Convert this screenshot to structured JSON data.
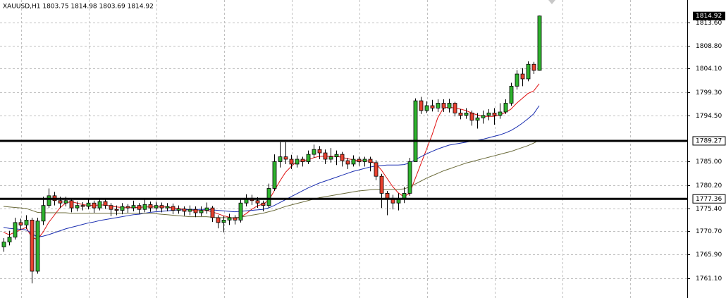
{
  "chart_data": {
    "type": "candlestick",
    "title": "XAUUSD,H1  1803.75 1814.98 1803.69 1814.92",
    "open": [
      1767.5,
      1768.5,
      1769.5,
      1772.5,
      1772.0,
      1773.0,
      1762.5,
      1772.8,
      1776.0,
      1778.0,
      1777.0,
      1776.5,
      1777.0,
      1775.5,
      1776.0,
      1775.8,
      1776.5,
      1775.5,
      1776.8,
      1776.0,
      1775.2,
      1775.0,
      1775.8,
      1775.5,
      1776.0,
      1775.2,
      1776.2,
      1775.5,
      1776.0,
      1775.5,
      1775.8,
      1775.0,
      1775.3,
      1774.8,
      1775.2,
      1774.5,
      1775.0,
      1775.5,
      1773.5,
      1772.5,
      1773.0,
      1773.5,
      1773.0,
      1776.5,
      1777.5,
      1777.0,
      1776.5,
      1776.0,
      1779.5,
      1785.0,
      1786.0,
      1785.5,
      1784.5,
      1785.5,
      1785.0,
      1786.5,
      1787.5,
      1786.8,
      1785.5,
      1786.0,
      1786.5,
      1785.2,
      1784.5,
      1785.5,
      1785.0,
      1785.5,
      1784.8,
      1782.0,
      1778.5,
      1777.5,
      1776.5,
      1777.5,
      1778.5,
      1785.0,
      1797.5,
      1795.5,
      1796.5,
      1796.0,
      1797.0,
      1796.0,
      1797.0,
      1795.0,
      1794.5,
      1795.0,
      1793.5,
      1794.0,
      1794.5,
      1795.0,
      1794.5,
      1795.2,
      1797.0,
      1800.5,
      1803.0,
      1802.0,
      1805.0,
      1803.75
    ],
    "high": [
      1769.3,
      1770.8,
      1773.5,
      1773.3,
      1774.0,
      1773.5,
      1773.5,
      1777.8,
      1779.5,
      1778.8,
      1777.8,
      1777.8,
      1777.3,
      1776.8,
      1776.7,
      1777.5,
      1777.0,
      1777.5,
      1777.3,
      1776.5,
      1776.0,
      1776.5,
      1776.3,
      1777.0,
      1776.5,
      1777.2,
      1776.8,
      1776.8,
      1776.6,
      1776.5,
      1776.4,
      1776.0,
      1775.8,
      1776.0,
      1775.8,
      1775.8,
      1776.6,
      1775.9,
      1774.0,
      1773.8,
      1774.3,
      1774.0,
      1777.2,
      1778.3,
      1778.2,
      1777.7,
      1777.0,
      1780.5,
      1786.5,
      1789.0,
      1789.0,
      1786.4,
      1786.3,
      1786.0,
      1787.3,
      1788.5,
      1788.2,
      1787.5,
      1787.8,
      1787.3,
      1787.0,
      1785.8,
      1786.3,
      1786.0,
      1786.0,
      1786.0,
      1785.3,
      1782.5,
      1779.0,
      1778.2,
      1778.5,
      1779.8,
      1785.8,
      1798.0,
      1798.3,
      1797.4,
      1797.7,
      1797.8,
      1797.8,
      1797.9,
      1797.3,
      1795.8,
      1796.0,
      1795.5,
      1795.0,
      1795.5,
      1795.8,
      1796.0,
      1797.0,
      1797.8,
      1801.2,
      1803.8,
      1804.2,
      1805.6,
      1805.5,
      1814.98
    ],
    "low": [
      1766.5,
      1767.8,
      1769.0,
      1771.0,
      1771.2,
      1760.0,
      1762.0,
      1772.0,
      1775.5,
      1776.0,
      1775.5,
      1775.8,
      1774.6,
      1774.8,
      1775.0,
      1775.2,
      1774.5,
      1775.0,
      1775.3,
      1773.8,
      1774.0,
      1774.2,
      1774.5,
      1774.8,
      1774.3,
      1774.6,
      1774.7,
      1774.9,
      1774.6,
      1774.8,
      1774.2,
      1774.3,
      1773.9,
      1774.0,
      1773.6,
      1773.8,
      1774.3,
      1772.6,
      1771.3,
      1770.5,
      1772.0,
      1772.1,
      1772.5,
      1775.8,
      1776.1,
      1775.5,
      1774.8,
      1775.5,
      1779.0,
      1783.8,
      1784.5,
      1783.5,
      1783.8,
      1784.0,
      1784.5,
      1785.8,
      1785.5,
      1784.5,
      1784.8,
      1784.3,
      1784.0,
      1783.5,
      1784.0,
      1784.2,
      1784.0,
      1783.0,
      1781.2,
      1775.5,
      1774.0,
      1775.2,
      1775.0,
      1776.5,
      1778.0,
      1785.0,
      1794.8,
      1795.0,
      1795.3,
      1795.2,
      1795.2,
      1795.1,
      1794.3,
      1793.7,
      1793.8,
      1792.4,
      1791.8,
      1792.8,
      1793.5,
      1792.6,
      1793.8,
      1794.8,
      1796.5,
      1799.8,
      1800.5,
      1801.5,
      1803.0,
      1803.69
    ],
    "close": [
      1768.5,
      1769.5,
      1772.5,
      1772.0,
      1773.0,
      1762.5,
      1772.8,
      1776.0,
      1778.0,
      1777.0,
      1776.5,
      1777.0,
      1775.5,
      1776.0,
      1775.8,
      1776.5,
      1775.5,
      1776.8,
      1776.0,
      1775.2,
      1775.0,
      1775.8,
      1775.5,
      1776.0,
      1775.2,
      1776.2,
      1775.5,
      1776.0,
      1775.5,
      1775.8,
      1775.0,
      1775.3,
      1774.8,
      1775.2,
      1774.5,
      1775.0,
      1775.5,
      1773.5,
      1772.5,
      1773.0,
      1773.5,
      1773.0,
      1776.5,
      1777.5,
      1777.0,
      1776.5,
      1776.0,
      1779.5,
      1785.0,
      1786.0,
      1785.5,
      1784.5,
      1785.5,
      1785.0,
      1786.5,
      1787.5,
      1786.8,
      1785.5,
      1786.0,
      1786.5,
      1785.2,
      1784.5,
      1785.5,
      1785.0,
      1785.5,
      1784.8,
      1782.0,
      1778.5,
      1777.5,
      1776.5,
      1777.5,
      1778.5,
      1785.0,
      1797.5,
      1795.5,
      1796.5,
      1796.0,
      1797.0,
      1796.0,
      1797.0,
      1795.0,
      1794.5,
      1795.0,
      1793.5,
      1794.0,
      1794.5,
      1795.0,
      1794.5,
      1795.2,
      1797.0,
      1800.5,
      1803.0,
      1802.0,
      1805.0,
      1803.75,
      1814.92
    ],
    "up_color": "#2fb42f",
    "down_color": "#e8412f",
    "indicators": [
      {
        "color": "#e01010",
        "values": [
          1770.5,
          1770.0,
          1770.5,
          1771.0,
          1771.5,
          1769.5,
          1769.0,
          1770.5,
          1772.5,
          1774.0,
          1775.5,
          1776.5,
          1776.8,
          1776.5,
          1776.2,
          1776.0,
          1776.0,
          1776.1,
          1776.1,
          1775.9,
          1775.7,
          1775.6,
          1775.5,
          1775.6,
          1775.6,
          1775.7,
          1775.7,
          1775.7,
          1775.7,
          1775.7,
          1775.5,
          1775.4,
          1775.2,
          1775.1,
          1775.0,
          1774.9,
          1775.0,
          1774.7,
          1774.3,
          1773.9,
          1773.6,
          1773.3,
          1773.6,
          1774.3,
          1775.2,
          1775.9,
          1776.3,
          1777.0,
          1779.0,
          1781.0,
          1782.8,
          1784.0,
          1785.0,
          1785.2,
          1785.4,
          1785.8,
          1786.1,
          1786.1,
          1786.1,
          1786.1,
          1785.9,
          1785.6,
          1785.4,
          1785.2,
          1785.2,
          1785.1,
          1784.6,
          1783.3,
          1781.6,
          1779.9,
          1778.6,
          1777.8,
          1778.5,
          1781.5,
          1784.5,
          1787.5,
          1790.5,
          1794.0,
          1796.0,
          1796.2,
          1796.0,
          1795.8,
          1795.5,
          1795.0,
          1794.6,
          1794.3,
          1794.3,
          1794.3,
          1794.6,
          1795.1,
          1795.8,
          1797.0,
          1798.0,
          1799.0,
          1799.5,
          1801.0
        ]
      },
      {
        "color": "#1a2eb0",
        "values": [
          1771.5,
          1771.3,
          1771.2,
          1771.1,
          1771.0,
          1770.3,
          1769.5,
          1769.7,
          1770.0,
          1770.4,
          1770.8,
          1771.2,
          1771.5,
          1771.8,
          1772.1,
          1772.4,
          1772.6,
          1772.9,
          1773.1,
          1773.3,
          1773.5,
          1773.7,
          1773.9,
          1774.1,
          1774.2,
          1774.4,
          1774.6,
          1774.7,
          1774.8,
          1774.9,
          1775.0,
          1775.1,
          1775.1,
          1775.2,
          1775.2,
          1775.2,
          1775.2,
          1775.1,
          1775.0,
          1774.9,
          1774.8,
          1774.7,
          1774.8,
          1774.9,
          1775.0,
          1775.1,
          1775.2,
          1775.5,
          1776.0,
          1776.6,
          1777.2,
          1777.8,
          1778.4,
          1779.0,
          1779.6,
          1780.1,
          1780.6,
          1781.0,
          1781.4,
          1781.8,
          1782.2,
          1782.6,
          1783.0,
          1783.3,
          1783.6,
          1783.9,
          1784.1,
          1784.2,
          1784.3,
          1784.3,
          1784.3,
          1784.4,
          1784.7,
          1785.4,
          1786.0,
          1786.6,
          1787.1,
          1787.6,
          1788.0,
          1788.4,
          1788.6,
          1788.8,
          1789.0,
          1789.2,
          1789.4,
          1789.6,
          1789.9,
          1790.2,
          1790.5,
          1790.9,
          1791.4,
          1792.1,
          1792.9,
          1793.8,
          1794.8,
          1796.5
        ]
      },
      {
        "color": "#6b6b3a",
        "values": [
          1775.8,
          1775.7,
          1775.6,
          1775.5,
          1775.4,
          1775.0,
          1774.6,
          1774.5,
          1774.5,
          1774.5,
          1774.5,
          1774.5,
          1774.4,
          1774.4,
          1774.4,
          1774.4,
          1774.4,
          1774.4,
          1774.4,
          1774.4,
          1774.4,
          1774.4,
          1774.4,
          1774.4,
          1774.4,
          1774.4,
          1774.4,
          1774.3,
          1774.2,
          1774.1,
          1774.0,
          1773.9,
          1773.8,
          1773.7,
          1773.7,
          1773.7,
          1773.7,
          1773.6,
          1773.5,
          1773.5,
          1773.5,
          1773.5,
          1773.6,
          1773.8,
          1774.0,
          1774.2,
          1774.4,
          1774.7,
          1775.0,
          1775.4,
          1775.8,
          1776.1,
          1776.4,
          1776.7,
          1777.0,
          1777.3,
          1777.6,
          1777.8,
          1778.0,
          1778.2,
          1778.4,
          1778.6,
          1778.8,
          1779.0,
          1779.1,
          1779.2,
          1779.3,
          1779.3,
          1779.3,
          1779.3,
          1779.3,
          1779.4,
          1779.8,
          1780.4,
          1781.0,
          1781.6,
          1782.1,
          1782.6,
          1783.1,
          1783.5,
          1783.9,
          1784.3,
          1784.7,
          1785.0,
          1785.3,
          1785.6,
          1785.9,
          1786.2,
          1786.5,
          1786.8,
          1787.1,
          1787.5,
          1787.9,
          1788.3,
          1788.8,
          1789.4
        ]
      }
    ],
    "levels": [
      1789.27,
      1777.36
    ],
    "ylim": [
      1757.0,
      1818.2
    ],
    "yticks": [
      {
        "value": 1813.6,
        "label": "1813.60"
      },
      {
        "value": 1808.8,
        "label": "1808.80"
      },
      {
        "value": 1804.1,
        "label": "1804.10"
      },
      {
        "value": 1799.3,
        "label": "1799.30"
      },
      {
        "value": 1794.5,
        "label": "1794.50"
      },
      {
        "value": 1785.0,
        "label": "1785.00"
      },
      {
        "value": 1780.2,
        "label": "1780.20"
      },
      {
        "value": 1775.4,
        "label": "1775.40"
      },
      {
        "value": 1770.7,
        "label": "1770.70"
      },
      {
        "value": 1765.9,
        "label": "1765.90"
      },
      {
        "value": 1761.1,
        "label": "1761.10"
      }
    ],
    "grid": true
  }
}
